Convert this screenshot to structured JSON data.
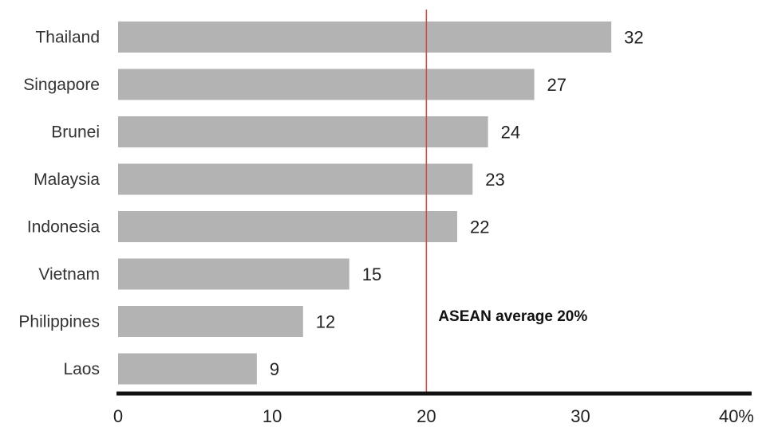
{
  "chart_data": {
    "type": "bar",
    "orientation": "horizontal",
    "categories": [
      "Thailand",
      "Singapore",
      "Brunei",
      "Malaysia",
      "Indonesia",
      "Vietnam",
      "Philippines",
      "Laos"
    ],
    "values": [
      32,
      27,
      24,
      23,
      22,
      15,
      12,
      9
    ],
    "xlim": [
      0,
      41
    ],
    "x_ticks": [
      {
        "value": 0,
        "label": "0"
      },
      {
        "value": 10,
        "label": "10"
      },
      {
        "value": 20,
        "label": "20"
      },
      {
        "value": 30,
        "label": "30"
      },
      {
        "value": 40,
        "label": "40%"
      }
    ],
    "reference_line": {
      "value": 20,
      "label": "ASEAN average 20%",
      "color": "#e0413a"
    },
    "bar_color": "#b3b3b3",
    "axis_color": "#111111",
    "grid": false,
    "legend": "none"
  }
}
